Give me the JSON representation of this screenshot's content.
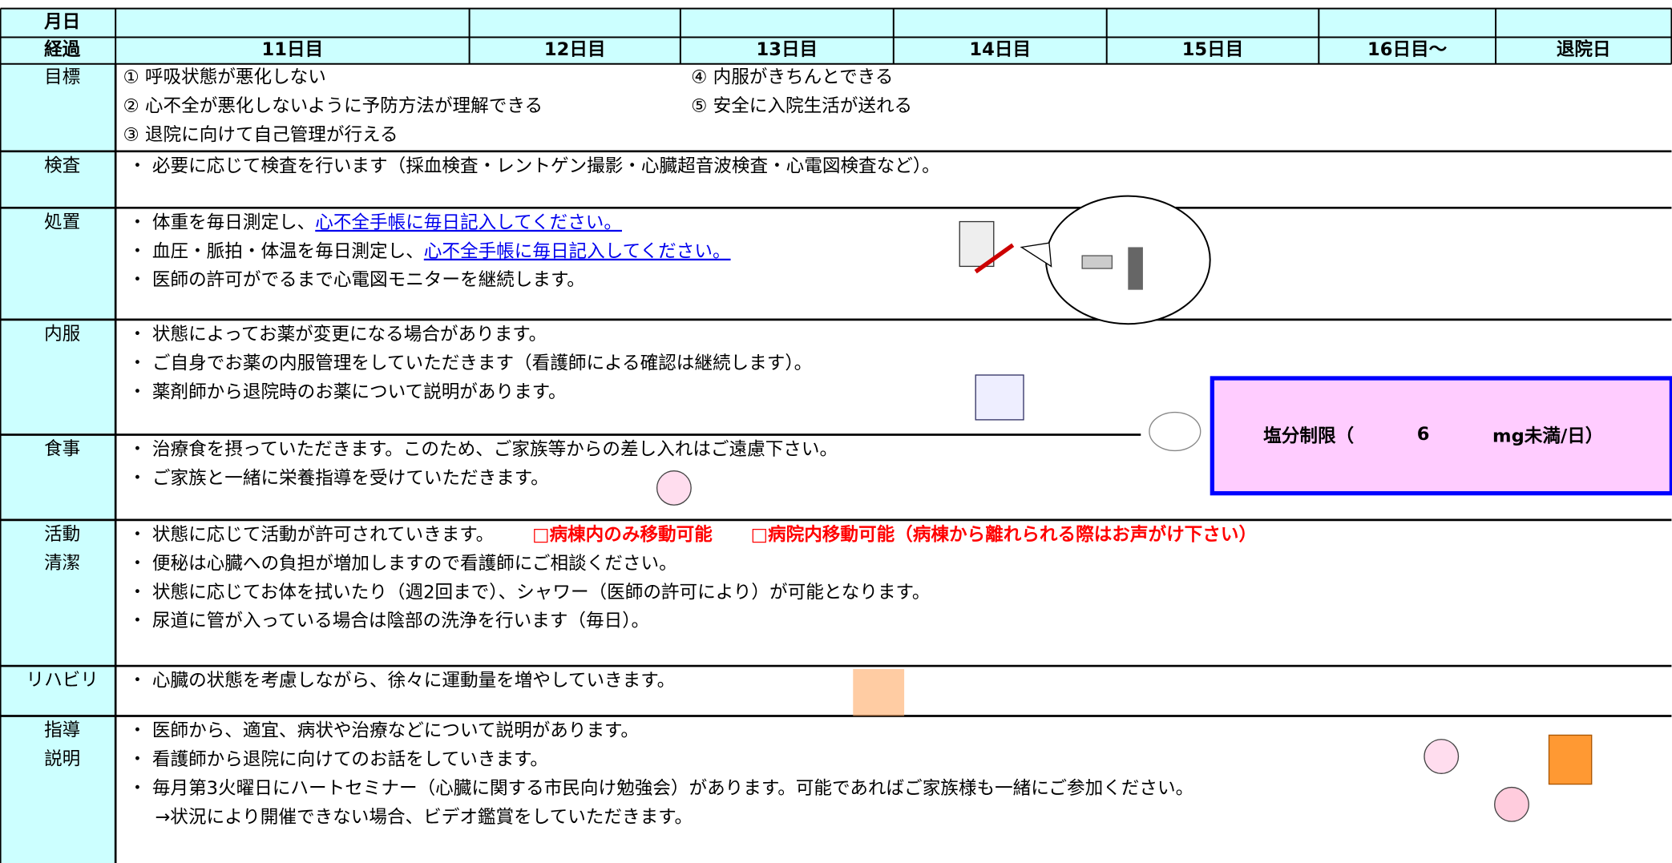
{
  "header": {
    "date_label": "月日",
    "progress_label": "経過",
    "days": [
      "11日目",
      "12日目",
      "13日目",
      "14日目",
      "15日目",
      "16日目〜",
      "退院日"
    ]
  },
  "goals": {
    "label": "目標",
    "items": [
      "① 呼吸状態が悪化しない",
      "② 心不全が悪化しないように予防方法が理解できる",
      "③ 退院に向けて自己管理が行える",
      "④ 内服がきちんとできる",
      "⑤ 安全に入院生活が送れる"
    ]
  },
  "rows": [
    {
      "label": [
        "検査"
      ],
      "lines": [
        [
          "・ 必要に応じて検査を行います（採血検査・レントゲン撮影・心臓超音波検査・心電図検査など）。"
        ]
      ]
    },
    {
      "label": [
        "処置"
      ],
      "lines": [
        [
          "・ 体重を毎日測定し、",
          {
            "text": "心不全手帳に毎日記入してください。",
            "link": true
          }
        ],
        [
          "・ 血圧・脈拍・体温を毎日測定し、",
          {
            "text": "心不全手帳に毎日記入してください。",
            "link": true
          }
        ],
        [
          "・ 医師の許可がでるまで心電図モニターを継続します。"
        ]
      ]
    },
    {
      "label": [
        "内服"
      ],
      "lines": [
        [
          "・ 状態によってお薬が変更になる場合があります。"
        ],
        [
          "・ ご自身でお薬の内服管理をしていただきます（看護師による確認は継続します）。"
        ],
        [
          "・ 薬剤師から退院時のお薬について説明があります。"
        ]
      ]
    },
    {
      "label": [
        "食事"
      ],
      "lines": [
        [
          "・ 治療食を摂っていただきます。このため、ご家族等からの差し入れはご遠慮下さい。"
        ],
        [
          "・ ご家族と一緒に栄養指導を受けていただきます。"
        ]
      ]
    },
    {
      "label": [
        "活動",
        "清潔"
      ],
      "lines": [
        [
          "・ 状態に応じて活動が許可されていきます。",
          {
            "text": "□病棟内のみ移動可能",
            "color": "#ff0000"
          },
          {
            "text": "□病院内移動可能（病棟から離れられる際はお声がけ下さい）",
            "color": "#ff0000"
          }
        ],
        [
          "・ 便秘は心臓への負担が増加しますので看護師にご相談ください。"
        ],
        [
          "・ 状態に応じてお体を拭いたり（週2回まで）、シャワー（医師の許可により）が可能となります。"
        ],
        [
          "・ 尿道に管が入っている場合は陰部の洗浄を行います（毎日）。"
        ]
      ]
    },
    {
      "label": [
        "リハビリ"
      ],
      "lines": [
        [
          "・ 心臓の状態を考慮しながら、徐々に運動量を増やしていきます。"
        ]
      ]
    },
    {
      "label": [
        "指導",
        "説明"
      ],
      "lines": [
        [
          "・ 医師から、適宜、病状や治療などについて説明があります。"
        ],
        [
          "・ 看護師から退院に向けてのお話をしていきます。"
        ],
        [
          "・ 毎月第3火曜日にハートセミナー（心臓に関する市民向け勉強会）があります。可能であればご家族様も一緒にご参加ください。"
        ],
        [
          "→状況により開催できない場合、ビデオ鑑賞をしていただきます。"
        ]
      ]
    }
  ],
  "salt": {
    "label": "塩分制限（",
    "value": "6",
    "unit": "mg未満/日）"
  }
}
